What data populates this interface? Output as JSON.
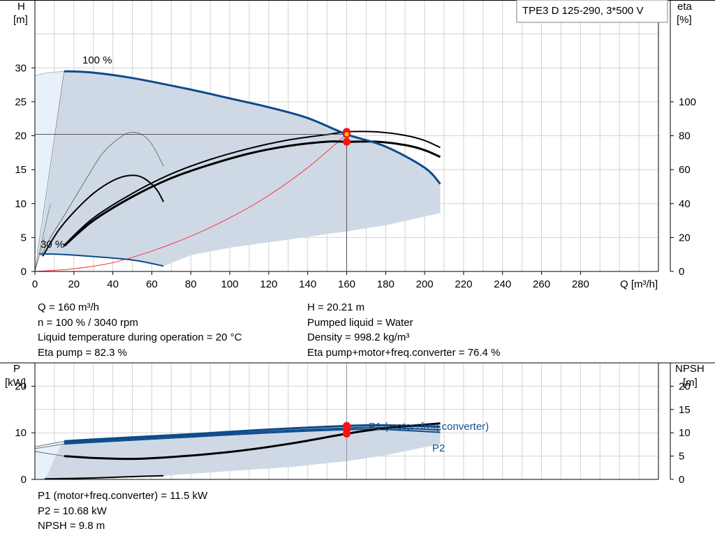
{
  "colors": {
    "envelope_fill": "#cfd9e6",
    "light_fill": "#e8f0fa",
    "blue_curve": "#0d4a8a",
    "black_curve": "#000000",
    "system_curve": "#ff3333",
    "grid": "#d2d2d2",
    "operating_point": "#ff1010",
    "duty_point": "#ffe000"
  },
  "chart_data": [
    {
      "type": "line",
      "title_box": "TPE3 D 125-290, 3*500 V",
      "ylabel_left": [
        "H",
        "[m]"
      ],
      "ylabel_right": [
        "eta",
        "[%]"
      ],
      "xlabel": "Q [m³/h]",
      "xticks": [
        0,
        20,
        40,
        60,
        80,
        100,
        120,
        140,
        160,
        180,
        200,
        220,
        240,
        260,
        280
      ],
      "yticks_left": [
        0,
        5,
        10,
        15,
        20,
        25,
        30
      ],
      "yticks_right": [
        0,
        20,
        40,
        60,
        80,
        100
      ],
      "xlim": [
        0,
        320
      ],
      "ylim_left": [
        0,
        40
      ],
      "ylim_right": [
        0,
        160
      ],
      "speed_label_max": "100 %",
      "speed_label_min": "30 %",
      "series": [
        {
          "role": "qh-max",
          "axis": "left",
          "points": [
            [
              15,
              29.5
            ],
            [
              30,
              29.3
            ],
            [
              50,
              28.5
            ],
            [
              80,
              26.8
            ],
            [
              100,
              25.5
            ],
            [
              120,
              24.2
            ],
            [
              140,
              22.6
            ],
            [
              160,
              20.21
            ],
            [
              180,
              18.4
            ],
            [
              200,
              15.3
            ],
            [
              208,
              12.9
            ]
          ]
        },
        {
          "role": "qh-min",
          "axis": "left",
          "points": [
            [
              2,
              2.6
            ],
            [
              15,
              2.5
            ],
            [
              30,
              2.2
            ],
            [
              50,
              1.7
            ],
            [
              66,
              0.8
            ]
          ]
        },
        {
          "role": "envelope",
          "axis": "left",
          "points": [
            [
              15,
              29.5
            ],
            [
              30,
              29.3
            ],
            [
              50,
              28.5
            ],
            [
              80,
              26.8
            ],
            [
              100,
              25.5
            ],
            [
              120,
              24.2
            ],
            [
              140,
              22.6
            ],
            [
              160,
              20.21
            ],
            [
              180,
              18.4
            ],
            [
              200,
              15.3
            ],
            [
              208,
              12.9
            ],
            [
              208,
              8.6
            ],
            [
              180,
              6.8
            ],
            [
              160,
              5.9
            ],
            [
              140,
              5.1
            ],
            [
              120,
              4.3
            ],
            [
              100,
              3.5
            ],
            [
              80,
              2.4
            ],
            [
              66,
              0.8
            ],
            [
              50,
              1.7
            ],
            [
              30,
              2.2
            ],
            [
              15,
              2.5
            ],
            [
              2,
              2.6
            ]
          ]
        },
        {
          "role": "light-region",
          "axis": "left",
          "points": [
            [
              0,
              28.8
            ],
            [
              5,
              29.2
            ],
            [
              10,
              29.4
            ],
            [
              15,
              29.5
            ],
            [
              14,
              20
            ],
            [
              10,
              10
            ],
            [
              6,
              4
            ],
            [
              2,
              2.6
            ],
            [
              0,
              2.6
            ]
          ]
        },
        {
          "role": "eta-pump",
          "axis": "right",
          "points": [
            [
              15,
              15
            ],
            [
              30,
              30
            ],
            [
              50,
              44
            ],
            [
              70,
              55
            ],
            [
              90,
              63
            ],
            [
              110,
              69.5
            ],
            [
              130,
              74
            ],
            [
              150,
              76.5
            ],
            [
              160,
              76.4
            ],
            [
              175,
              76.5
            ],
            [
              190,
              74.5
            ],
            [
              200,
              71.5
            ],
            [
              208,
              67.5
            ]
          ]
        },
        {
          "role": "eta-pump-upper",
          "axis": "right",
          "points": [
            [
              15,
              15.5
            ],
            [
              30,
              31.5
            ],
            [
              50,
              46
            ],
            [
              70,
              57.5
            ],
            [
              90,
              66
            ],
            [
              110,
              72.5
            ],
            [
              130,
              77.5
            ],
            [
              150,
              80.7
            ],
            [
              160,
              82.3
            ],
            [
              175,
              82.3
            ],
            [
              190,
              80.2
            ],
            [
              200,
              77.2
            ],
            [
              208,
              73
            ]
          ]
        },
        {
          "role": "eta-pump-low",
          "axis": "right",
          "points": [
            [
              4,
              9
            ],
            [
              12,
              24
            ],
            [
              20,
              35
            ],
            [
              30,
              46
            ],
            [
              40,
              53.5
            ],
            [
              48,
              56.5
            ],
            [
              55,
              55.5
            ],
            [
              62,
              49
            ],
            [
              66,
              41
            ]
          ]
        },
        {
          "role": "eta-thin",
          "axis": "right",
          "points": [
            [
              3,
              9
            ],
            [
              8,
              20
            ],
            [
              15,
              33
            ],
            [
              25,
              52
            ],
            [
              35,
              70
            ],
            [
              45,
              80
            ],
            [
              50,
              82
            ],
            [
              55,
              80.5
            ],
            [
              60,
              75
            ],
            [
              66,
              62
            ]
          ]
        },
        {
          "role": "system-curve",
          "axis": "left",
          "points": [
            [
              0,
              0
            ],
            [
              20,
              0.4
            ],
            [
              40,
              1.3
            ],
            [
              60,
              3
            ],
            [
              80,
              5.2
            ],
            [
              100,
              7.9
            ],
            [
              120,
              11.2
            ],
            [
              140,
              15.3
            ],
            [
              160,
              20.21
            ]
          ]
        }
      ],
      "operating_point": {
        "q": 160,
        "h": 20.21,
        "eta_pump": 82.3,
        "eta_total": 76.4
      }
    },
    {
      "type": "line",
      "ylabel_left": [
        "P",
        "[kW]"
      ],
      "ylabel_right": [
        "NPSH",
        "[m]"
      ],
      "yticks_left": [
        0,
        10,
        20
      ],
      "yticks_right": [
        0,
        5,
        10,
        15,
        20
      ],
      "xlim": [
        0,
        320
      ],
      "ylim_left": [
        0,
        25
      ],
      "ylim_right": [
        0,
        25
      ],
      "series": [
        {
          "name": "P1 (motor+freq.converter)",
          "role": "p1",
          "axis": "left",
          "points": [
            [
              15,
              8.2
            ],
            [
              40,
              8.8
            ],
            [
              80,
              9.7
            ],
            [
              120,
              10.7
            ],
            [
              160,
              11.5
            ],
            [
              180,
              11.6
            ],
            [
              208,
              11.3
            ]
          ]
        },
        {
          "name": "P2",
          "role": "p2",
          "axis": "left",
          "points": [
            [
              15,
              7.6
            ],
            [
              40,
              8.2
            ],
            [
              80,
              9.1
            ],
            [
              120,
              10.0
            ],
            [
              160,
              10.68
            ],
            [
              180,
              10.7
            ],
            [
              208,
              10.1
            ]
          ]
        },
        {
          "role": "p-band",
          "axis": "left",
          "points": [
            [
              15,
              7.9
            ],
            [
              40,
              8.5
            ],
            [
              80,
              9.4
            ],
            [
              120,
              10.3
            ],
            [
              160,
              11.0
            ],
            [
              180,
              11.1
            ],
            [
              208,
              10.6
            ]
          ]
        },
        {
          "role": "npsh",
          "axis": "right",
          "points": [
            [
              15,
              5
            ],
            [
              30,
              4.6
            ],
            [
              50,
              4.4
            ],
            [
              70,
              4.8
            ],
            [
              100,
              5.9
            ],
            [
              130,
              7.6
            ],
            [
              160,
              9.8
            ],
            [
              180,
              11.0
            ],
            [
              208,
              12.0
            ]
          ]
        },
        {
          "role": "p-low",
          "axis": "left",
          "points": [
            [
              5,
              0.1
            ],
            [
              30,
              0.3
            ],
            [
              50,
              0.6
            ],
            [
              66,
              0.8
            ]
          ]
        },
        {
          "role": "p-envelope",
          "axis": "left",
          "points": [
            [
              15,
              8.2
            ],
            [
              40,
              8.8
            ],
            [
              80,
              9.7
            ],
            [
              120,
              10.7
            ],
            [
              160,
              11.5
            ],
            [
              180,
              11.6
            ],
            [
              208,
              11.3
            ],
            [
              208,
              7.6
            ],
            [
              180,
              5.2
            ],
            [
              160,
              3.9
            ],
            [
              130,
              2.6
            ],
            [
              100,
              1.8
            ],
            [
              66,
              0.8
            ],
            [
              40,
              0.4
            ],
            [
              5,
              0.1
            ],
            [
              7,
              1.5
            ],
            [
              10,
              4.5
            ],
            [
              13,
              7.0
            ]
          ]
        },
        {
          "role": "p-light",
          "axis": "left",
          "points": [
            [
              0,
              7.0
            ],
            [
              8,
              7.6
            ],
            [
              15,
              8.2
            ],
            [
              13,
              7.0
            ],
            [
              10,
              4.5
            ],
            [
              7,
              1.5
            ],
            [
              5,
              0.1
            ],
            [
              0,
              0.1
            ]
          ]
        }
      ],
      "operating_point": {
        "q": 160,
        "p1": 11.5,
        "p2": 10.68,
        "npsh": 9.8
      }
    }
  ],
  "info_top": {
    "left": [
      "Q = 160 m³/h",
      "n = 100 % / 3040 rpm",
      "Liquid temperature during operation = 20 °C",
      "Eta pump = 82.3 %"
    ],
    "right": [
      "H = 20.21 m",
      "Pumped liquid = Water",
      "Density = 998.2 kg/m³",
      "Eta pump+motor+freq.converter = 76.4 %"
    ]
  },
  "info_bottom": [
    "P1 (motor+freq.converter) = 11.5 kW",
    "P2 = 10.68 kW",
    "NPSH = 9.8 m"
  ]
}
